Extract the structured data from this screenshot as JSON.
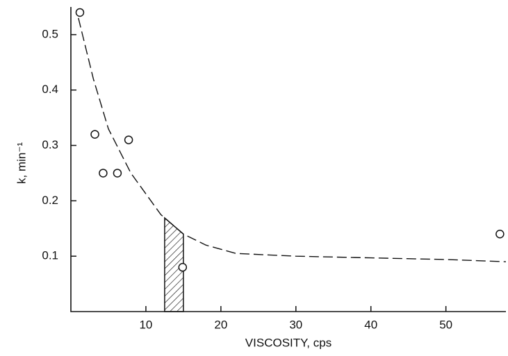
{
  "chart_data": {
    "type": "scatter",
    "x_label": "VISCOSITY, cps",
    "y_label": "k, min⁻¹",
    "points": {
      "x": [
        1.2,
        3.2,
        4.3,
        6.2,
        7.7,
        14.9,
        57.2
      ],
      "y": [
        0.54,
        0.32,
        0.25,
        0.25,
        0.31,
        0.08,
        0.14
      ]
    },
    "curve": {
      "x": [
        1,
        3,
        5,
        8,
        12,
        15,
        18,
        22,
        30,
        40,
        50,
        58
      ],
      "y": [
        0.53,
        0.42,
        0.33,
        0.25,
        0.175,
        0.14,
        0.12,
        0.105,
        0.1,
        0.097,
        0.094,
        0.09
      ]
    },
    "shaded_region": {
      "x": [
        12.5,
        15
      ]
    },
    "xlim": [
      0,
      58
    ],
    "ylim": [
      0,
      0.55
    ],
    "xticks": [
      10,
      20,
      30,
      40,
      50
    ],
    "yticks": [
      0.1,
      0.2,
      0.3,
      0.4,
      0.5
    ]
  }
}
